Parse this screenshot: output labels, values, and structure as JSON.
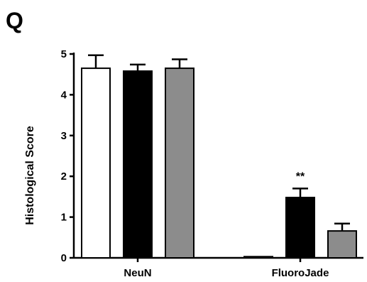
{
  "panel_label": "Q",
  "chart_data": {
    "type": "bar",
    "categories": [
      "NeuN",
      "FluoroJade"
    ],
    "ylabel": "Histological Score",
    "xlabel": "",
    "ylim": [
      0,
      5
    ],
    "yticks": [
      "0",
      "1",
      "2",
      "3",
      "4",
      "5"
    ],
    "grid": false,
    "legend": "none",
    "series": [
      {
        "color": "#ffffff",
        "values": [
          4.65,
          0.03
        ],
        "errors": [
          0.32,
          0.0
        ]
      },
      {
        "color": "#000000",
        "values": [
          4.58,
          1.48
        ],
        "errors": [
          0.16,
          0.22
        ]
      },
      {
        "color": "#8c8c8c",
        "values": [
          4.65,
          0.66
        ],
        "errors": [
          0.22,
          0.18
        ]
      }
    ],
    "annotations": [
      {
        "text": "**",
        "category": "FluoroJade",
        "series_index": 1
      }
    ]
  }
}
